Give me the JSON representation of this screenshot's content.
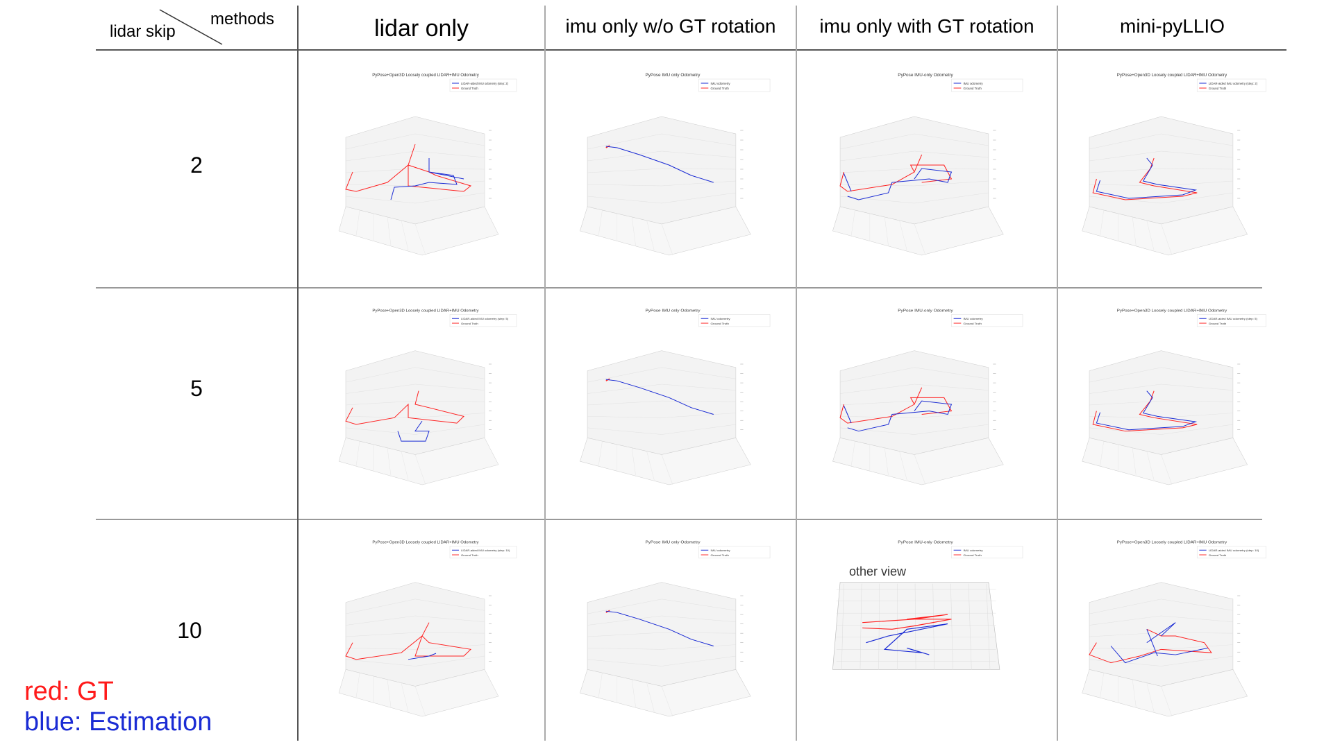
{
  "header": {
    "corner_row_label": "lidar skip",
    "corner_col_label": "methods",
    "columns": [
      "lidar only",
      "imu only w/o GT rotation",
      "imu only with GT rotation",
      "mini-pyLLIO"
    ]
  },
  "rows": [
    "2",
    "5",
    "10"
  ],
  "notes": {
    "red": "red: GT",
    "blue": "blue: Estimation",
    "other_view": "other view"
  },
  "colors": {
    "gt": "#ff2020",
    "estimation": "#1a2bd4",
    "grid": "#dcdcdc",
    "pane": "#f0f0f0"
  },
  "plot_titles": {
    "lidar": "PyPose+Open3D Loosely coupled LIDAR+IMU Odometry",
    "imu": "PyPose IMU only Odometry",
    "imu_gt": "PyPose IMU-only Odometry"
  },
  "plot_legends": {
    "lidar_2": [
      "LIDAR-aided IMU odometry (step: 2)",
      "Ground Truth"
    ],
    "lidar_5": [
      "LIDAR-aided IMU odometry (step: 5)",
      "Ground Truth"
    ],
    "lidar_10": [
      "LIDAR-aided IMU odometry (step: 10)",
      "Ground Truth"
    ],
    "imu": [
      "IMU odometry",
      "Ground Truth"
    ]
  }
}
